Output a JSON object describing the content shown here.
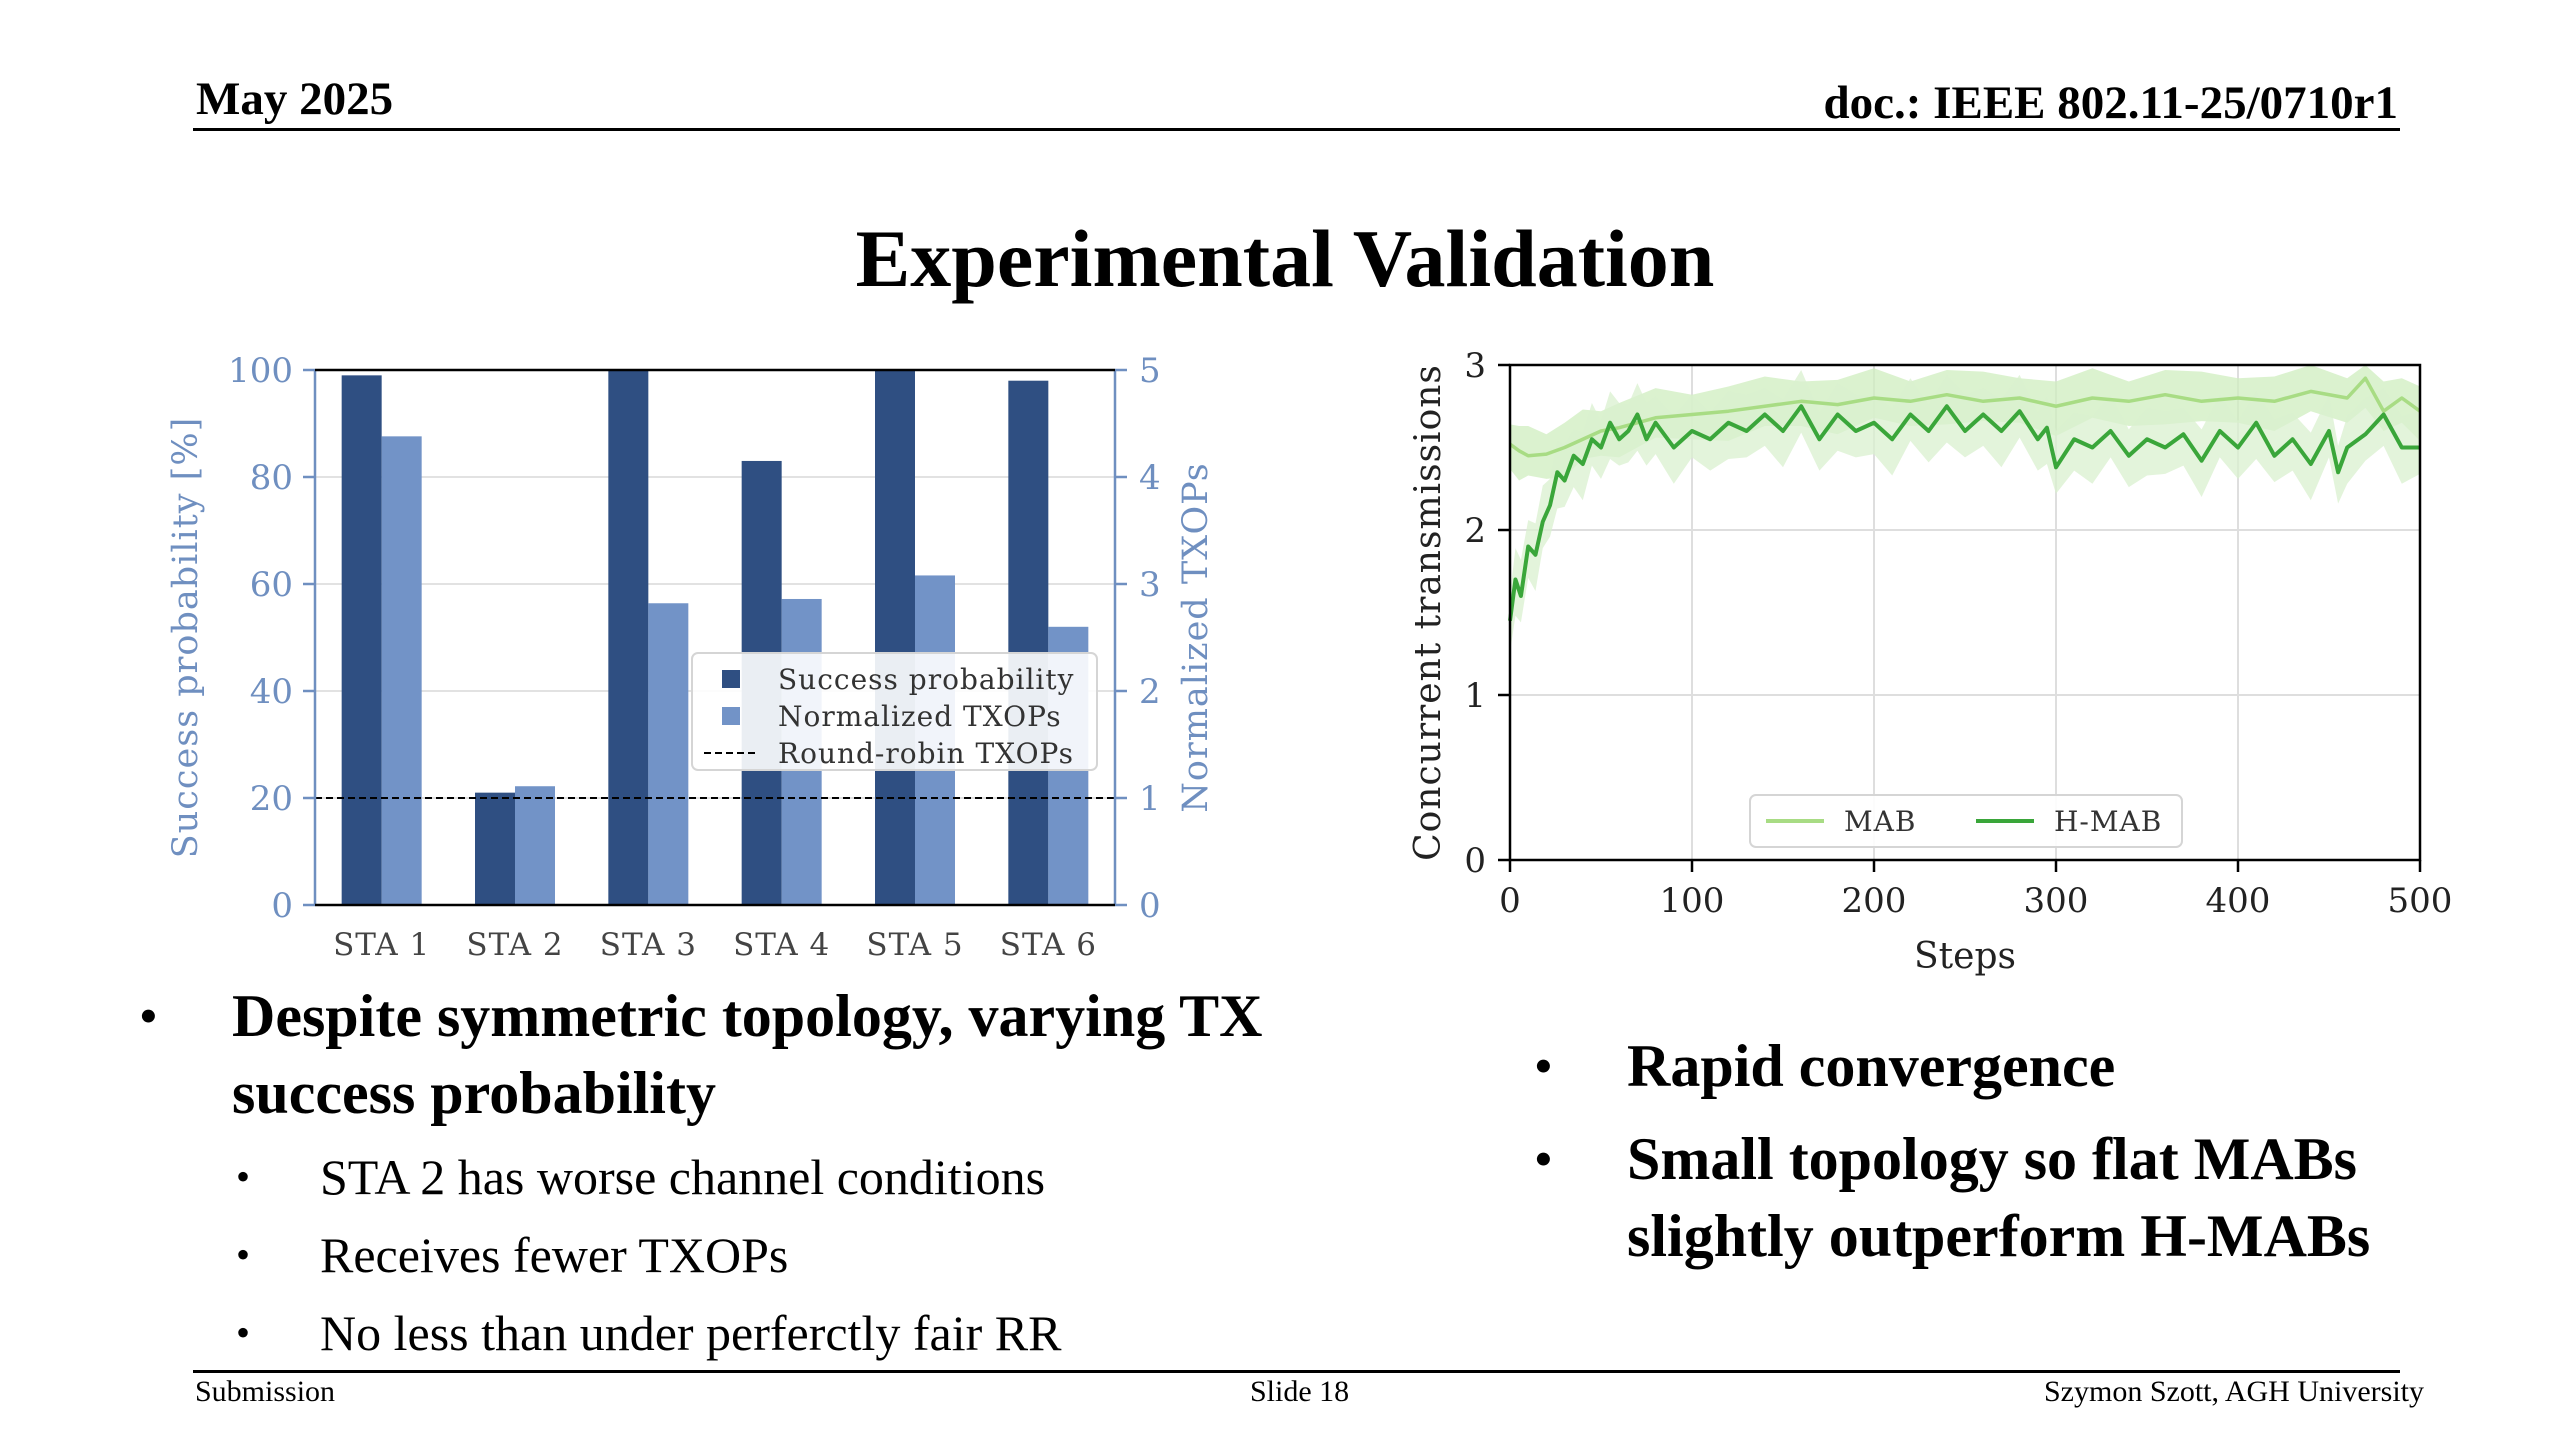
{
  "header": {
    "date": "May 2025",
    "doc_id": "doc.: IEEE 802.11-25/0710r1"
  },
  "title": "Experimental Validation",
  "chart_data": [
    {
      "type": "bar",
      "categories": [
        "STA 1",
        "STA 2",
        "STA 3",
        "STA 4",
        "STA 5",
        "STA 6"
      ],
      "series": [
        {
          "name": "Success probability",
          "axis": "left",
          "color": "#2f4f82",
          "values": [
            99,
            21,
            100,
            83,
            100,
            98
          ]
        },
        {
          "name": "Normalized TXOPs",
          "axis": "right",
          "color": "#7293c7",
          "values": [
            4.38,
            1.11,
            2.82,
            2.86,
            3.08,
            2.6
          ]
        }
      ],
      "reference_lines": [
        {
          "name": "Round-robin TXOPs",
          "axis": "right",
          "value": 1,
          "style": "dashed"
        }
      ],
      "ylabel": "Success probability [%]",
      "ylabel_right": "Normalized TXOPs",
      "ylim": [
        0,
        100
      ],
      "ylim_right": [
        0,
        5
      ],
      "yticks": [
        "0",
        "20",
        "40",
        "60",
        "80",
        "100"
      ],
      "yticks_right": [
        "0",
        "1",
        "2",
        "3",
        "4",
        "5"
      ],
      "axis_color": "#6f8fc0",
      "grid": true,
      "legend": "center-right"
    },
    {
      "type": "line",
      "xlabel": "Steps",
      "ylabel": "Concurrent transmissions",
      "xlim": [
        0,
        500
      ],
      "ylim": [
        0,
        3
      ],
      "xticks": [
        "0",
        "100",
        "200",
        "300",
        "400",
        "500"
      ],
      "yticks": [
        "0",
        "1",
        "2",
        "3"
      ],
      "grid": true,
      "legend": "bottom-center",
      "series": [
        {
          "name": "MAB",
          "color": "#a8dc84",
          "band_color": "#cfedbf",
          "x": [
            0,
            5,
            10,
            20,
            30,
            40,
            50,
            60,
            80,
            100,
            120,
            140,
            160,
            180,
            200,
            220,
            240,
            260,
            280,
            300,
            320,
            340,
            360,
            380,
            400,
            420,
            440,
            460,
            470,
            480,
            490,
            500
          ],
          "y": [
            2.52,
            2.48,
            2.45,
            2.46,
            2.5,
            2.55,
            2.6,
            2.62,
            2.68,
            2.7,
            2.72,
            2.75,
            2.78,
            2.76,
            2.8,
            2.78,
            2.82,
            2.78,
            2.8,
            2.75,
            2.8,
            2.78,
            2.82,
            2.78,
            2.8,
            2.78,
            2.84,
            2.8,
            2.92,
            2.72,
            2.8,
            2.72
          ]
        },
        {
          "name": "H-MAB",
          "color": "#3aa63a",
          "band_color": "#d9f0cf",
          "x": [
            0,
            3,
            6,
            10,
            14,
            18,
            22,
            26,
            30,
            35,
            40,
            45,
            50,
            55,
            60,
            65,
            70,
            75,
            80,
            90,
            100,
            110,
            120,
            130,
            140,
            150,
            160,
            170,
            180,
            190,
            200,
            210,
            220,
            230,
            240,
            250,
            260,
            270,
            280,
            290,
            295,
            300,
            310,
            320,
            330,
            340,
            350,
            360,
            370,
            380,
            390,
            400,
            410,
            420,
            430,
            440,
            450,
            455,
            460,
            470,
            480,
            490,
            500
          ],
          "y": [
            1.45,
            1.7,
            1.6,
            1.9,
            1.85,
            2.05,
            2.15,
            2.35,
            2.3,
            2.45,
            2.4,
            2.55,
            2.5,
            2.65,
            2.55,
            2.6,
            2.7,
            2.55,
            2.65,
            2.5,
            2.6,
            2.55,
            2.65,
            2.6,
            2.7,
            2.6,
            2.75,
            2.55,
            2.7,
            2.6,
            2.65,
            2.55,
            2.7,
            2.6,
            2.75,
            2.6,
            2.7,
            2.6,
            2.72,
            2.55,
            2.62,
            2.38,
            2.55,
            2.5,
            2.6,
            2.45,
            2.55,
            2.5,
            2.58,
            2.42,
            2.6,
            2.5,
            2.65,
            2.45,
            2.55,
            2.4,
            2.6,
            2.35,
            2.5,
            2.58,
            2.7,
            2.5,
            2.5
          ]
        }
      ]
    }
  ],
  "left_bullets": {
    "main": "Despite symmetric topology, varying TX success probability",
    "subs": [
      "STA 2 has worse channel conditions",
      "Receives fewer TXOPs",
      "No less than under perferctly fair RR"
    ]
  },
  "right_bullets": [
    "Rapid convergence",
    "Small topology so flat MABs slightly outperform H-MABs"
  ],
  "footer": {
    "left": "Submission",
    "center": "Slide 18",
    "right": "Szymon Szott, AGH University"
  }
}
